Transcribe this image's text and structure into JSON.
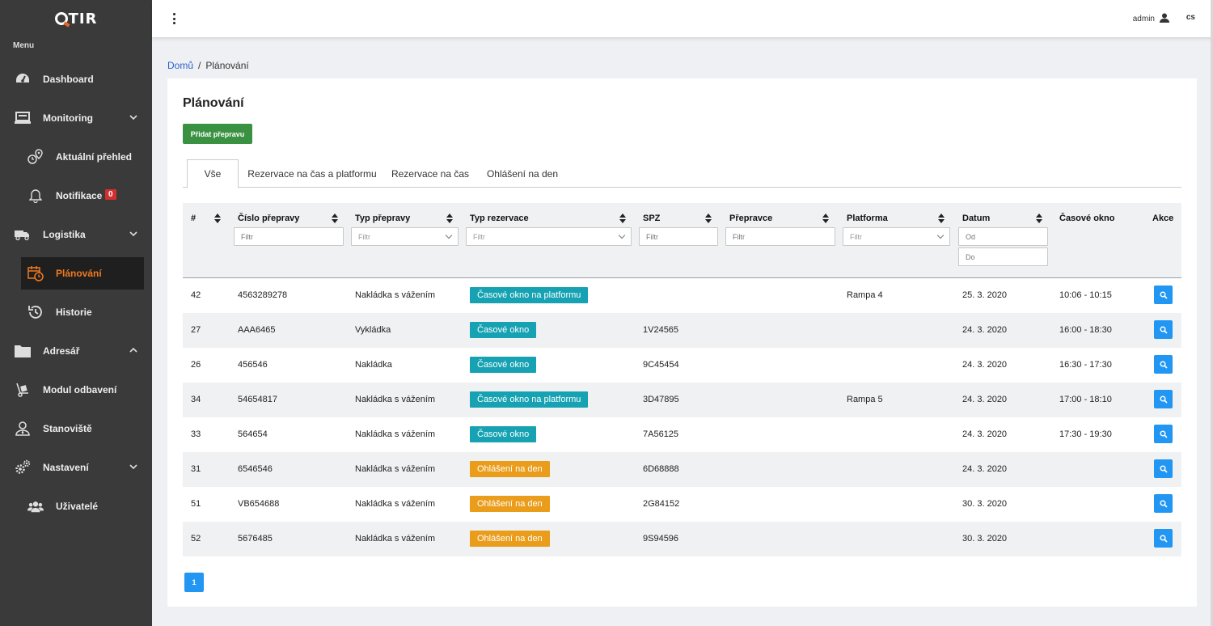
{
  "app": {
    "logo_text": "TIR"
  },
  "sidebar": {
    "menu_title": "Menu",
    "items": [
      {
        "label": "Dashboard"
      },
      {
        "label": "Monitoring"
      },
      {
        "label": "Aktuální přehled"
      },
      {
        "label": "Notifikace",
        "badge": "0"
      },
      {
        "label": "Logistika"
      },
      {
        "label": "Plánování"
      },
      {
        "label": "Historie"
      },
      {
        "label": "Adresář"
      },
      {
        "label": "Modul odbavení"
      },
      {
        "label": "Stanoviště"
      },
      {
        "label": "Nastavení"
      },
      {
        "label": "Uživatelé"
      }
    ]
  },
  "topbar": {
    "user": "admin",
    "lang": "cs"
  },
  "breadcrumb": {
    "home": "Domů",
    "sep": "/",
    "current": "Plánování"
  },
  "page": {
    "title": "Plánování",
    "add_button": "Přidat přepravu"
  },
  "tabs": [
    "Vše",
    "Rezervace na čas a platformu",
    "Rezervace na čas",
    "Ohlášení na den"
  ],
  "table": {
    "headers": [
      "#",
      "Číslo přepravy",
      "Typ přepravy",
      "Typ rezervace",
      "SPZ",
      "Přepravce",
      "Platforma",
      "Datum",
      "Časové okno",
      "Akce"
    ],
    "filter_placeholder": "Filtr",
    "date_from_placeholder": "Od",
    "date_to_placeholder": "Do",
    "rows": [
      {
        "id": "42",
        "number": "4563289278",
        "type": "Nakládka s vážením",
        "reservation": "Časové okno na platformu",
        "res_color": "teal",
        "spz": "",
        "carrier": "",
        "platform": "Rampa 4",
        "date": "25. 3. 2020",
        "window": "10:06 - 10:15"
      },
      {
        "id": "27",
        "number": "AAA6465",
        "type": "Vykládka",
        "reservation": "Časové okno",
        "res_color": "teal",
        "spz": "1V24565",
        "carrier": "",
        "platform": "",
        "date": "24. 3. 2020",
        "window": "16:00 - 18:30"
      },
      {
        "id": "26",
        "number": "456546",
        "type": "Nakládka",
        "reservation": "Časové okno",
        "res_color": "teal",
        "spz": "9C45454",
        "carrier": "",
        "platform": "",
        "date": "24. 3. 2020",
        "window": "16:30 - 17:30"
      },
      {
        "id": "34",
        "number": "54654817",
        "type": "Nakládka s vážením",
        "reservation": "Časové okno na platformu",
        "res_color": "teal",
        "spz": "3D47895",
        "carrier": "",
        "platform": "Rampa 5",
        "date": "24. 3. 2020",
        "window": "17:00 - 18:10"
      },
      {
        "id": "33",
        "number": "564654",
        "type": "Nakládka s vážením",
        "reservation": "Časové okno",
        "res_color": "teal",
        "spz": "7A56125",
        "carrier": "",
        "platform": "",
        "date": "24. 3. 2020",
        "window": "17:30 - 19:30"
      },
      {
        "id": "31",
        "number": "6546546",
        "type": "Nakládka s vážením",
        "reservation": "Ohlášení na den",
        "res_color": "orange",
        "spz": "6D68888",
        "carrier": "",
        "platform": "",
        "date": "24. 3. 2020",
        "window": ""
      },
      {
        "id": "51",
        "number": "VB654688",
        "type": "Nakládka s vážením",
        "reservation": "Ohlášení na den",
        "res_color": "orange",
        "spz": "2G84152",
        "carrier": "",
        "platform": "",
        "date": "30. 3. 2020",
        "window": ""
      },
      {
        "id": "52",
        "number": "5676485",
        "type": "Nakládka s vážením",
        "reservation": "Ohlášení na den",
        "res_color": "orange",
        "spz": "9S94596",
        "carrier": "",
        "platform": "",
        "date": "30. 3. 2020",
        "window": ""
      }
    ]
  },
  "pagination": {
    "current": "1"
  },
  "colors": {
    "sidebar": "#3a3a3a",
    "active_nav": "#f07a1f",
    "add_button": "#3a9142",
    "teal": "#16a2b2",
    "orange": "#ea9c1b",
    "action": "#2196f3"
  }
}
